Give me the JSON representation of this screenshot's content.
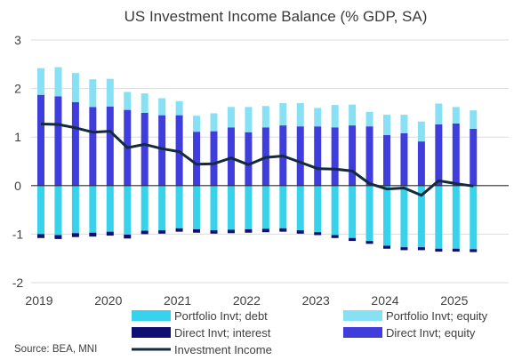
{
  "chart_data": {
    "type": "bar",
    "title": "US Investment Income Balance (% GDP, SA)",
    "ylim": [
      -2,
      3
    ],
    "y_ticks": [
      3,
      2,
      1,
      0,
      -1,
      -2
    ],
    "x_tick_labels": [
      "2019",
      "2020",
      "2021",
      "2022",
      "2023",
      "2024",
      "2025"
    ],
    "grid": "horizontal",
    "legend_position": "bottom",
    "source": "Source: BEA, MNI",
    "quarters": [
      "2019Q1",
      "2019Q2",
      "2019Q3",
      "2019Q4",
      "2020Q1",
      "2020Q2",
      "2020Q3",
      "2020Q4",
      "2021Q1",
      "2021Q2",
      "2021Q3",
      "2021Q4",
      "2022Q1",
      "2022Q2",
      "2022Q3",
      "2022Q4",
      "2023Q1",
      "2023Q2",
      "2023Q3",
      "2023Q4",
      "2024Q1",
      "2024Q2",
      "2024Q3",
      "2024Q4",
      "2025Q1",
      "2025Q2"
    ],
    "series": [
      {
        "name": "Portfolio Invt; debt",
        "kind": "bar",
        "color": "#38d2ec",
        "values": [
          -1.0,
          -1.02,
          -0.98,
          -0.97,
          -0.95,
          -1.01,
          -0.93,
          -0.92,
          -0.88,
          -0.9,
          -0.92,
          -0.91,
          -0.9,
          -0.89,
          -0.88,
          -0.92,
          -0.96,
          -1.02,
          -1.08,
          -1.14,
          -1.24,
          -1.27,
          -1.27,
          -1.3,
          -1.3,
          -1.31
        ]
      },
      {
        "name": "Direct Invt; interest",
        "kind": "bar",
        "color": "#0f0f73",
        "values": [
          -0.08,
          -0.08,
          -0.08,
          -0.08,
          -0.08,
          -0.08,
          -0.07,
          -0.07,
          -0.07,
          -0.07,
          -0.07,
          -0.07,
          -0.07,
          -0.07,
          -0.07,
          -0.07,
          -0.06,
          -0.06,
          -0.06,
          -0.06,
          -0.06,
          -0.06,
          -0.06,
          -0.06,
          -0.06,
          -0.06
        ]
      },
      {
        "name": "Direct Invt; equity",
        "kind": "bar",
        "color": "#3f3ddc",
        "values": [
          1.87,
          1.84,
          1.72,
          1.62,
          1.63,
          1.56,
          1.5,
          1.45,
          1.45,
          1.11,
          1.12,
          1.2,
          1.1,
          1.2,
          1.24,
          1.22,
          1.22,
          1.2,
          1.24,
          1.22,
          1.04,
          1.08,
          0.91,
          1.26,
          1.28,
          1.17
        ]
      },
      {
        "name": "Portfolio Invt; equity",
        "kind": "bar",
        "color": "#88e0f4",
        "values": [
          0.55,
          0.6,
          0.6,
          0.57,
          0.57,
          0.37,
          0.4,
          0.35,
          0.29,
          0.33,
          0.37,
          0.42,
          0.52,
          0.44,
          0.46,
          0.48,
          0.38,
          0.46,
          0.43,
          0.3,
          0.42,
          0.38,
          0.41,
          0.43,
          0.34,
          0.38
        ]
      },
      {
        "name": "Investment Income",
        "kind": "line",
        "color": "#142a3e",
        "values": [
          1.27,
          1.26,
          1.19,
          1.1,
          1.12,
          0.78,
          0.85,
          0.76,
          0.7,
          0.44,
          0.45,
          0.57,
          0.43,
          0.58,
          0.61,
          0.48,
          0.35,
          0.34,
          0.3,
          0.04,
          -0.07,
          -0.05,
          -0.2,
          0.1,
          0.04,
          -0.01
        ]
      }
    ],
    "legend": [
      "Portfolio Invt; debt",
      "Portfolio Invt; equity",
      "Direct Invt; interest",
      "Direct Invt; equity",
      "Investment Income"
    ]
  }
}
